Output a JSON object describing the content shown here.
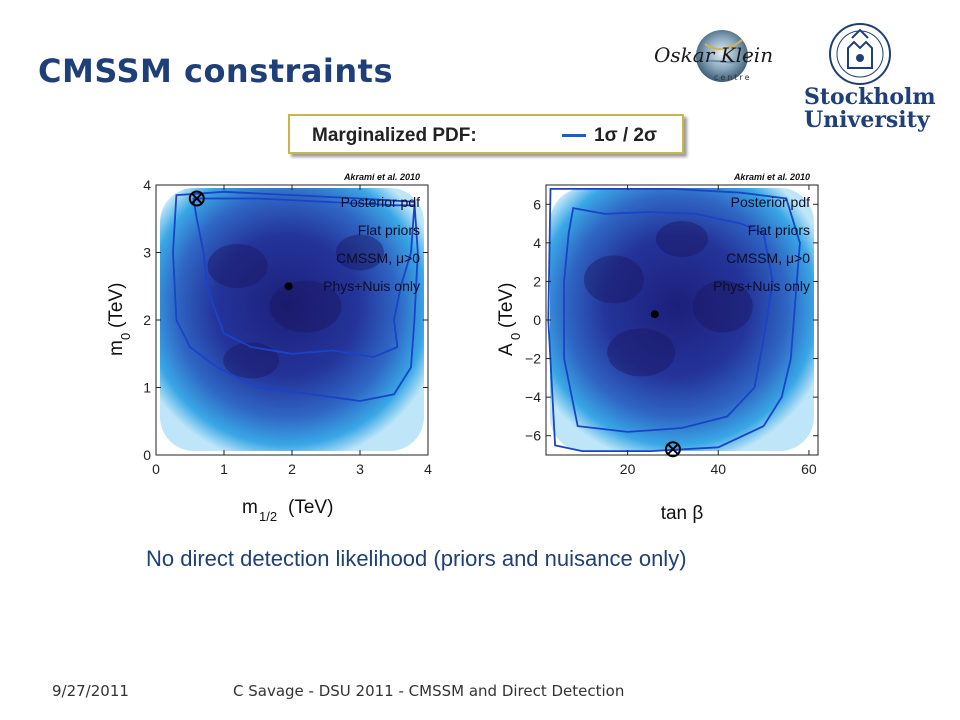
{
  "slide": {
    "title": "CMSSM constraints",
    "caption": "No direct detection likelihood (priors and nuisance only)",
    "footer_date": "9/27/2011",
    "footer_text": "C Savage - DSU 2011 - CMSSM and Direct Detection"
  },
  "logos": {
    "oskar_klein": "Oskar Klein",
    "oskar_klein_sub": "centre",
    "university_line1": "Stockholm",
    "university_line2": "University"
  },
  "legend": {
    "label": "Marginalized PDF:",
    "value": "1σ / 2σ",
    "line_color": "#1a5fc6"
  },
  "chart_data": [
    {
      "type": "heatmap",
      "credit": "Akrami et al. 2010",
      "annotations": [
        "Posterior pdf",
        "Flat priors",
        "CMSSM, μ>0",
        "Phys+Nuis only"
      ],
      "xlabel": "m",
      "xlabel_sub": "1/2",
      "xlabel_unit": "(TeV)",
      "ylabel": "m",
      "ylabel_sub": "0",
      "ylabel_unit": "(TeV)",
      "xlim": [
        0,
        4
      ],
      "ylim": [
        0,
        4
      ],
      "xticks": [
        0,
        1,
        2,
        3,
        4
      ],
      "yticks": [
        0,
        1,
        2,
        3,
        4
      ],
      "best_fit": {
        "x": 1.95,
        "y": 2.5
      },
      "posterior_mean": {
        "x": 0.6,
        "y": 3.8
      },
      "contour_2sigma": [
        [
          0.3,
          3.85
        ],
        [
          1.0,
          3.9
        ],
        [
          2.0,
          3.85
        ],
        [
          3.0,
          3.8
        ],
        [
          3.8,
          3.75
        ],
        [
          3.85,
          3.0
        ],
        [
          3.8,
          2.0
        ],
        [
          3.75,
          1.3
        ],
        [
          3.5,
          0.9
        ],
        [
          3.0,
          0.8
        ],
        [
          2.3,
          0.9
        ],
        [
          1.5,
          1.0
        ],
        [
          0.9,
          1.3
        ],
        [
          0.5,
          1.6
        ],
        [
          0.3,
          2.0
        ],
        [
          0.25,
          3.0
        ]
      ],
      "contour_1sigma": [
        [
          0.55,
          3.8
        ],
        [
          1.5,
          3.8
        ],
        [
          2.5,
          3.75
        ],
        [
          3.5,
          3.7
        ],
        [
          3.8,
          3.7
        ],
        [
          3.75,
          3.0
        ],
        [
          3.6,
          2.5
        ],
        [
          3.5,
          2.0
        ],
        [
          3.55,
          1.6
        ],
        [
          3.2,
          1.45
        ],
        [
          2.6,
          1.55
        ],
        [
          2.0,
          1.5
        ],
        [
          1.4,
          1.6
        ],
        [
          1.0,
          1.8
        ],
        [
          0.85,
          2.2
        ],
        [
          0.75,
          2.5
        ],
        [
          0.7,
          3.0
        ],
        [
          0.6,
          3.5
        ]
      ]
    },
    {
      "type": "heatmap",
      "credit": "Akrami et al. 2010",
      "annotations": [
        "Posterior pdf",
        "Flat priors",
        "CMSSM, μ>0",
        "Phys+Nuis only"
      ],
      "xlabel": "tan β",
      "ylabel": "A",
      "ylabel_sub": "0",
      "ylabel_unit": "(TeV)",
      "xlim": [
        2,
        62
      ],
      "ylim": [
        -7,
        7
      ],
      "xticks": [
        20,
        40,
        60
      ],
      "yticks": [
        -6,
        -4,
        -2,
        0,
        2,
        4,
        6
      ],
      "best_fit": {
        "x": 26,
        "y": 0.3
      },
      "posterior_mean": {
        "x": 30,
        "y": -6.7
      },
      "contour_2sigma": [
        [
          3,
          6.8
        ],
        [
          15,
          6.8
        ],
        [
          30,
          6.8
        ],
        [
          45,
          6.6
        ],
        [
          55,
          6.3
        ],
        [
          58,
          4.0
        ],
        [
          57,
          1.0
        ],
        [
          56,
          -2.0
        ],
        [
          54,
          -4.0
        ],
        [
          50,
          -5.5
        ],
        [
          40,
          -6.6
        ],
        [
          25,
          -6.8
        ],
        [
          10,
          -6.8
        ],
        [
          4,
          -6.5
        ],
        [
          2.5,
          0
        ]
      ],
      "contour_1sigma": [
        [
          8,
          5.8
        ],
        [
          15,
          5.5
        ],
        [
          25,
          5.6
        ],
        [
          35,
          5.5
        ],
        [
          45,
          5.0
        ],
        [
          50,
          4.5
        ],
        [
          52,
          2.0
        ],
        [
          50,
          -1.0
        ],
        [
          48,
          -3.5
        ],
        [
          42,
          -5.0
        ],
        [
          32,
          -5.6
        ],
        [
          20,
          -5.8
        ],
        [
          9,
          -5.5
        ],
        [
          6,
          -2.0
        ],
        [
          6,
          2.0
        ],
        [
          7,
          4.5
        ]
      ]
    }
  ]
}
